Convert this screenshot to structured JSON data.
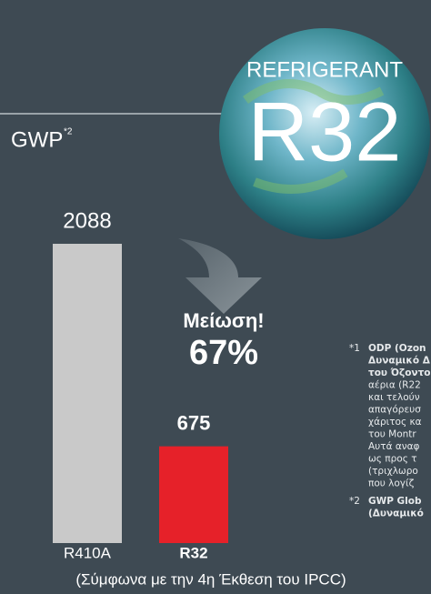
{
  "chart_data": {
    "type": "bar",
    "title": "GWP",
    "title_note": "*2",
    "categories": [
      "R410A",
      "R32"
    ],
    "values": [
      2088,
      675
    ],
    "colors": [
      "#c9c9c9",
      "#e62129"
    ],
    "annotation": [
      "Μείωση!",
      "67%"
    ],
    "source": "(Σύμφωνα με την 4η Έκθεση του IPCC)"
  },
  "badge": {
    "top": "REFRIGERANT",
    "main": "R32"
  },
  "footnotes": [
    {
      "mark": "*1",
      "lines": [
        "ODP (Ozon",
        "Δυναμικό Δ",
        "του Όζοντο",
        "αέρια (R22",
        "και τελούν",
        "απαγόρευσ",
        "χάριτος κα",
        "του Montr",
        "Αυτά αναφ",
        "ως προς τ",
        "(τριχλωρο",
        "που λογίζ"
      ]
    },
    {
      "mark": "*2",
      "lines": [
        "GWP Glob",
        "(Δυναμικό"
      ]
    }
  ]
}
